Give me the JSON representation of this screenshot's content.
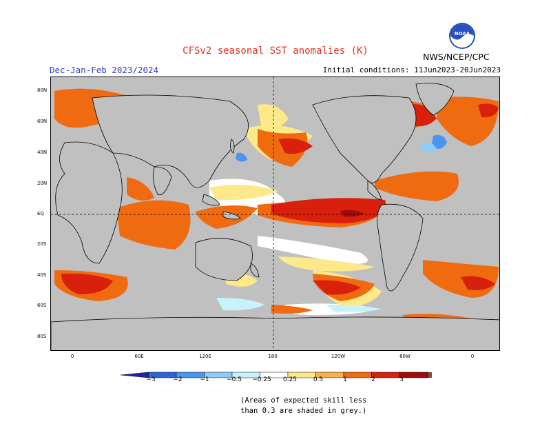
{
  "title": "CFSv2 seasonal SST anomalies (K)",
  "period": "Dec-Jan-Feb 2023/2024",
  "initial_conditions": "Initial conditions: 11Jun2023-20Jun2023",
  "agency": "NWS/NCEP/CPC",
  "logo_text": "NOAA",
  "lat_labels": [
    "80N",
    "60N",
    "40N",
    "20N",
    "EQ",
    "20S",
    "40S",
    "60S",
    "80S"
  ],
  "lon_labels": [
    "0",
    "60E",
    "120E",
    "180",
    "120W",
    "60W",
    "0"
  ],
  "colorbar": {
    "labels": [
      "−3",
      "−2",
      "−1",
      "−0.5",
      "−0.25",
      "0.25",
      "0.5",
      "1",
      "2",
      "3"
    ],
    "colors": [
      "#1a28a8",
      "#2c66d8",
      "#4a95f0",
      "#8ccdfa",
      "#c6f2fb",
      "#ffffff",
      "#fde98a",
      "#f8b24a",
      "#f06a10",
      "#d8200c",
      "#a30a0a",
      "#8a4a3c"
    ]
  },
  "note": [
    "(Areas of expected skill less",
    "than 0.3 are shaded in grey.)"
  ],
  "colors": {
    "land": "#c0c0c0",
    "neutral": "#ffffff",
    "light_orange": "#fde98a",
    "orange": "#f06a10",
    "red": "#d8200c",
    "dark_red": "#a30a0a",
    "light_blue": "#c6f2fb",
    "blue": "#4a95f0"
  }
}
